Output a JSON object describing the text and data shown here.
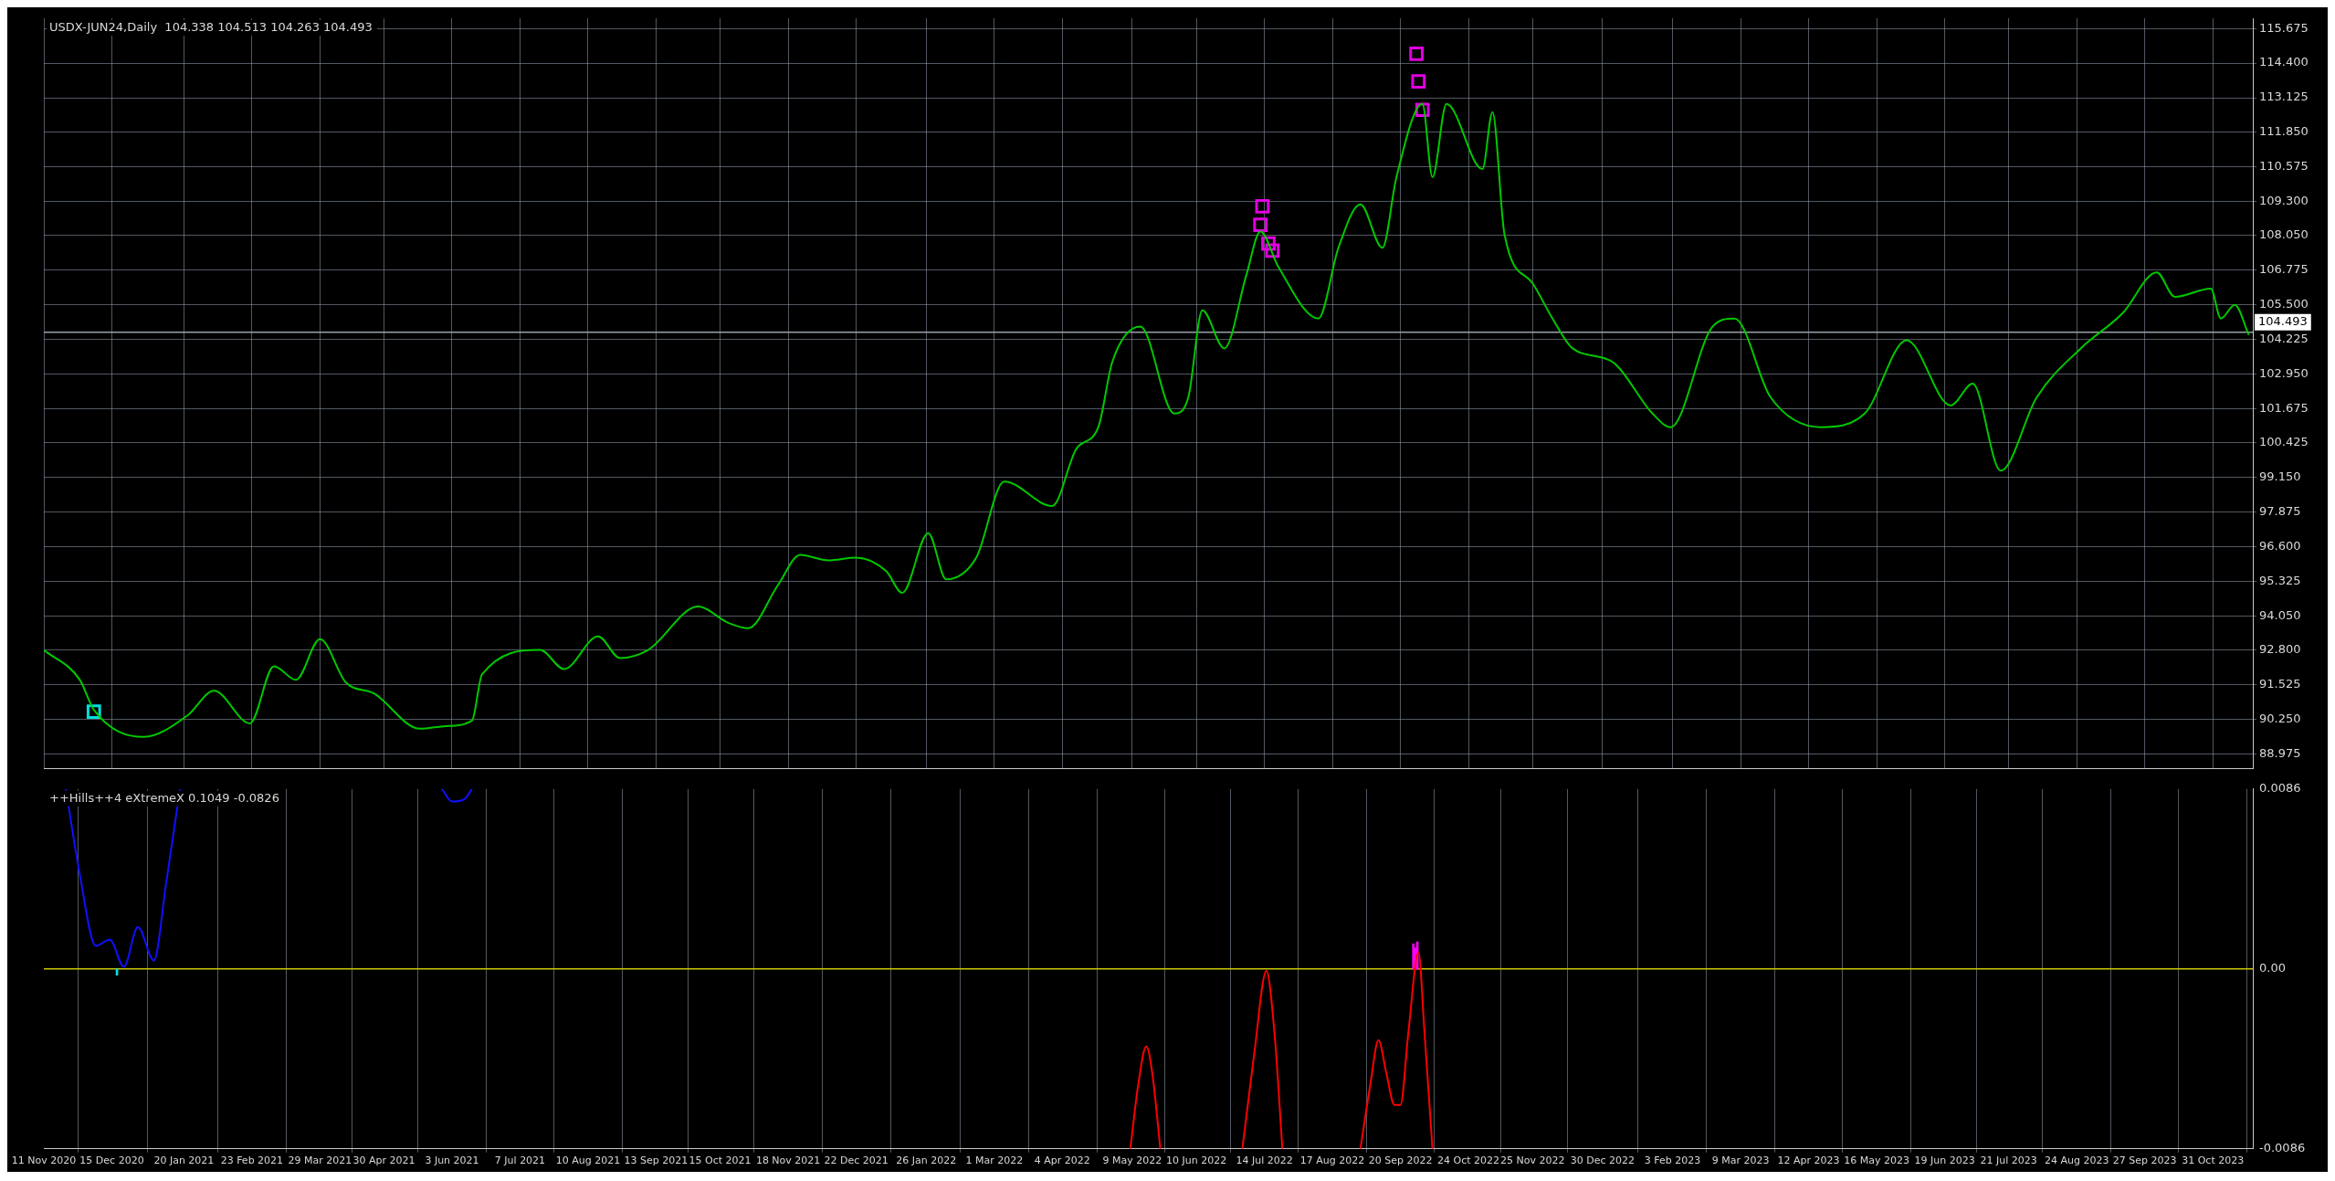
{
  "chart_data": [
    {
      "type": "line",
      "title": "USDX-JUN24,Daily  104.338 104.513 104.263 104.493",
      "xlim": [
        "2020-11-11",
        "2023-11-20"
      ],
      "xticks": [
        {
          "value": "2020-11-11",
          "label": null
        },
        {
          "value": "2020-12-15",
          "label": null
        },
        {
          "value": "2021-01-20",
          "label": null
        },
        {
          "value": "2021-02-23",
          "label": null
        },
        {
          "value": "2021-03-29",
          "label": null
        },
        {
          "value": "2021-04-30",
          "label": null
        },
        {
          "value": "2021-06-03",
          "label": null
        },
        {
          "value": "2021-07-07",
          "label": null
        },
        {
          "value": "2021-08-10",
          "label": null
        },
        {
          "value": "2021-09-13",
          "label": null
        },
        {
          "value": "2021-10-15",
          "label": null
        },
        {
          "value": "2021-11-18",
          "label": null
        },
        {
          "value": "2021-12-22",
          "label": null
        },
        {
          "value": "2022-01-26",
          "label": null
        },
        {
          "value": "2022-03-01",
          "label": null
        },
        {
          "value": "2022-04-04",
          "label": null
        },
        {
          "value": "2022-05-09",
          "label": null
        },
        {
          "value": "2022-06-10",
          "label": null
        },
        {
          "value": "2022-07-14",
          "label": null
        },
        {
          "value": "2022-08-17",
          "label": null
        },
        {
          "value": "2022-09-20",
          "label": null
        },
        {
          "value": "2022-10-24",
          "label": null
        },
        {
          "value": "2022-11-25",
          "label": null
        },
        {
          "value": "2022-12-30",
          "label": null
        },
        {
          "value": "2023-02-03",
          "label": null
        },
        {
          "value": "2023-03-09",
          "label": null
        },
        {
          "value": "2023-04-12",
          "label": null
        },
        {
          "value": "2023-05-16",
          "label": null
        },
        {
          "value": "2023-06-19",
          "label": null
        },
        {
          "value": "2023-07-21",
          "label": null
        },
        {
          "value": "2023-08-24",
          "label": null
        },
        {
          "value": "2023-09-27",
          "label": null
        },
        {
          "value": "2023-10-31",
          "label": null
        }
      ],
      "ylim": [
        88.45,
        116.05
      ],
      "yticks": [
        {
          "value": 88.975,
          "label": "88.975"
        },
        {
          "value": 90.25,
          "label": "90.250"
        },
        {
          "value": 91.525,
          "label": "91.525"
        },
        {
          "value": 92.8,
          "label": "92.800"
        },
        {
          "value": 94.05,
          "label": "94.050"
        },
        {
          "value": 95.325,
          "label": "95.325"
        },
        {
          "value": 96.6,
          "label": "96.600"
        },
        {
          "value": 97.875,
          "label": "97.875"
        },
        {
          "value": 99.15,
          "label": "99.150"
        },
        {
          "value": 100.425,
          "label": "100.425"
        },
        {
          "value": 101.675,
          "label": "101.675"
        },
        {
          "value": 102.95,
          "label": "102.950"
        },
        {
          "value": 104.225,
          "label": "104.225"
        },
        {
          "value": 105.5,
          "label": "105.500"
        },
        {
          "value": 106.775,
          "label": "106.775"
        },
        {
          "value": 108.05,
          "label": "108.050"
        },
        {
          "value": 109.3,
          "label": "109.300"
        },
        {
          "value": 110.575,
          "label": "110.575"
        },
        {
          "value": 111.85,
          "label": "111.850"
        },
        {
          "value": 113.125,
          "label": "113.125"
        },
        {
          "value": 114.4,
          "label": "114.400"
        },
        {
          "value": 115.675,
          "label": "115.675"
        }
      ],
      "tick_labels": "y",
      "grid": true,
      "legend": false,
      "ref_lines": [
        {
          "axis": "y",
          "value": 104.493,
          "label": "104.493",
          "color": "#9aa0a8"
        }
      ],
      "series": [
        {
          "type": "line",
          "color": "#00c800",
          "marker": "none",
          "x": [
            "2020-11-11",
            "2020-11-29",
            "2020-12-06",
            "2020-12-31",
            "2021-01-22",
            "2021-02-04",
            "2021-02-22",
            "2021-03-06",
            "2021-03-17",
            "2021-03-29",
            "2021-04-11",
            "2021-04-25",
            "2021-05-18",
            "2021-05-31",
            "2021-06-13",
            "2021-06-18",
            "2021-07-17",
            "2021-07-29",
            "2021-08-15",
            "2021-08-26",
            "2021-09-09",
            "2021-10-04",
            "2021-10-19",
            "2021-10-29",
            "2021-11-13",
            "2021-11-24",
            "2021-12-08",
            "2021-12-22",
            "2022-01-06",
            "2022-01-14",
            "2022-01-27",
            "2022-02-05",
            "2022-02-20",
            "2022-03-06",
            "2022-03-30",
            "2022-04-11",
            "2022-04-22",
            "2022-04-29",
            "2022-05-13",
            "2022-05-30",
            "2022-06-06",
            "2022-06-13",
            "2022-06-24",
            "2022-07-05",
            "2022-07-12",
            "2022-07-21",
            "2022-08-10",
            "2022-08-20",
            "2022-08-31",
            "2022-09-11",
            "2022-09-18",
            "2022-10-01",
            "2022-10-06",
            "2022-10-13",
            "2022-10-31",
            "2022-11-05",
            "2022-11-11",
            "2022-11-25",
            "2022-12-05",
            "2022-12-15",
            "2023-01-04",
            "2023-01-24",
            "2023-02-02",
            "2023-02-23",
            "2023-03-06",
            "2023-03-24",
            "2023-04-18",
            "2023-05-10",
            "2023-05-31",
            "2023-06-22",
            "2023-07-03",
            "2023-07-17",
            "2023-08-04",
            "2023-08-26",
            "2023-09-16",
            "2023-10-03",
            "2023-10-12",
            "2023-10-30",
            "2023-11-04",
            "2023-11-11",
            "2023-11-18"
          ],
          "values": [
            92.8,
            91.7,
            90.6,
            89.6,
            90.4,
            91.3,
            90.1,
            92.2,
            91.7,
            93.2,
            91.6,
            91.2,
            89.9,
            90.0,
            90.2,
            91.9,
            92.8,
            92.1,
            93.3,
            92.5,
            92.8,
            94.4,
            93.8,
            93.6,
            95.2,
            96.3,
            96.1,
            96.2,
            95.7,
            94.9,
            97.1,
            95.4,
            96.2,
            99.0,
            98.1,
            100.2,
            101.0,
            103.4,
            104.7,
            101.5,
            102.1,
            105.3,
            103.9,
            106.6,
            108.2,
            106.9,
            105.0,
            107.6,
            109.2,
            107.6,
            110.2,
            112.9,
            110.2,
            112.9,
            110.5,
            112.6,
            108.1,
            106.3,
            105.0,
            103.9,
            103.4,
            101.5,
            101.0,
            104.7,
            105.0,
            102.1,
            101.0,
            101.5,
            104.2,
            101.8,
            102.6,
            99.4,
            102.1,
            103.9,
            105.2,
            106.7,
            105.8,
            106.1,
            105.0,
            105.5,
            104.4
          ]
        },
        {
          "type": "scatter",
          "color": "#e000e0",
          "marker": "square",
          "x": [
            "2022-07-12",
            "2022-07-13",
            "2022-07-16",
            "2022-07-18",
            "2022-09-28",
            "2022-09-29",
            "2022-10-01"
          ],
          "values": [
            108.45,
            109.13,
            107.76,
            107.5,
            114.74,
            113.73,
            112.68
          ]
        },
        {
          "type": "scatter",
          "color": "#00e0e0",
          "marker": "square",
          "x": [
            "2020-12-06"
          ],
          "values": [
            90.53
          ]
        }
      ]
    },
    {
      "type": "line",
      "title": "++Hills++4 eXtremeX 0.1049 -0.0826",
      "xlim": [
        "2020-11-11",
        "2023-11-20"
      ],
      "xticks": [
        {
          "value": "2020-11-11",
          "label": "11 Nov 2020"
        },
        {
          "value": "2020-12-15",
          "label": "15 Dec 2020"
        },
        {
          "value": "2021-01-20",
          "label": "20 Jan 2021"
        },
        {
          "value": "2021-02-23",
          "label": "23 Feb 2021"
        },
        {
          "value": "2021-03-29",
          "label": "29 Mar 2021"
        },
        {
          "value": "2021-04-30",
          "label": "30 Apr 2021"
        },
        {
          "value": "2021-06-03",
          "label": "3 Jun 2021"
        },
        {
          "value": "2021-07-07",
          "label": "7 Jul 2021"
        },
        {
          "value": "2021-08-10",
          "label": "10 Aug 2021"
        },
        {
          "value": "2021-09-13",
          "label": "13 Sep 2021"
        },
        {
          "value": "2021-10-15",
          "label": "15 Oct 2021"
        },
        {
          "value": "2021-11-18",
          "label": "18 Nov 2021"
        },
        {
          "value": "2021-12-22",
          "label": "22 Dec 2021"
        },
        {
          "value": "2022-01-26",
          "label": "26 Jan 2022"
        },
        {
          "value": "2022-03-01",
          "label": "1 Mar 2022"
        },
        {
          "value": "2022-04-04",
          "label": "4 Apr 2022"
        },
        {
          "value": "2022-05-09",
          "label": "9 May 2022"
        },
        {
          "value": "2022-06-10",
          "label": "10 Jun 2022"
        },
        {
          "value": "2022-07-14",
          "label": "14 Jul 2022"
        },
        {
          "value": "2022-08-17",
          "label": "17 Aug 2022"
        },
        {
          "value": "2022-09-20",
          "label": "20 Sep 2022"
        },
        {
          "value": "2022-10-24",
          "label": "24 Oct 2022"
        },
        {
          "value": "2022-11-25",
          "label": "25 Nov 2022"
        },
        {
          "value": "2022-12-30",
          "label": "30 Dec 2022"
        },
        {
          "value": "2023-02-03",
          "label": "3 Feb 2023"
        },
        {
          "value": "2023-03-09",
          "label": "9 Mar 2023"
        },
        {
          "value": "2023-04-12",
          "label": "12 Apr 2023"
        },
        {
          "value": "2023-05-16",
          "label": "16 May 2023"
        },
        {
          "value": "2023-06-19",
          "label": "19 Jun 2023"
        },
        {
          "value": "2023-07-21",
          "label": "21 Jul 2023"
        },
        {
          "value": "2023-08-24",
          "label": "24 Aug 2023"
        },
        {
          "value": "2023-09-27",
          "label": "27 Sep 2023"
        },
        {
          "value": "2023-10-31",
          "label": "31 Oct 2023"
        }
      ],
      "ylim": [
        -0.0086,
        0.0086
      ],
      "yticks": [
        -0.0086,
        {
          "value": 0,
          "label": "0.00"
        },
        0.0086
      ],
      "grid": "x",
      "legend": false,
      "ref_lines": [
        {
          "axis": "y",
          "value": 0,
          "color": "#c8c800"
        }
      ],
      "series": [
        {
          "type": "line",
          "color": "#1010ff",
          "marker": "none",
          "x": [
            "2020-11-22",
            "2020-11-29",
            "2020-12-07",
            "2020-12-14",
            "2020-12-21",
            "2020-12-28",
            "2021-01-05",
            "2021-01-11",
            "2021-01-18",
            "2021-03-01",
            "2021-05-29",
            "2021-06-03",
            "2021-06-09",
            "2021-06-13"
          ],
          "values": [
            0.0086,
            0.0045,
            0.0011,
            0.0014,
            0.0001,
            0.002,
            0.0004,
            0.004,
            0.0086,
            null,
            0.0086,
            0.008,
            0.0081,
            0.0086
          ]
        },
        {
          "type": "line",
          "color": "#ff0000",
          "marker": "none",
          "x": [
            "2022-05-08",
            "2022-05-12",
            "2022-05-16",
            "2022-05-19",
            "2022-05-23",
            "2022-06-15",
            "2022-07-03",
            "2022-07-09",
            "2022-07-15",
            "2022-07-19",
            "2022-07-23",
            "2022-08-15",
            "2022-08-31",
            "2022-09-05",
            "2022-09-09",
            "2022-09-13",
            "2022-09-17",
            "2022-09-20",
            "2022-09-24",
            "2022-09-29",
            "2022-10-02",
            "2022-10-06"
          ],
          "values": [
            -0.0086,
            -0.0055,
            -0.0037,
            -0.005,
            -0.0086,
            null,
            -0.0086,
            -0.004,
            -0.0001,
            -0.003,
            -0.0086,
            null,
            -0.0086,
            -0.0055,
            -0.0034,
            -0.005,
            -0.0065,
            -0.0065,
            -0.003,
            0.0008,
            -0.003,
            -0.0086
          ]
        },
        {
          "type": "bar",
          "color": "#00e0e0",
          "x": [
            "2020-12-18"
          ],
          "values": [
            -0.0003
          ]
        },
        {
          "type": "bar",
          "color": "#ff00ff",
          "x": [
            "2022-09-26",
            "2022-09-27",
            "2022-09-28"
          ],
          "values": [
            0.0012,
            0.001,
            0.0013
          ]
        }
      ]
    }
  ]
}
